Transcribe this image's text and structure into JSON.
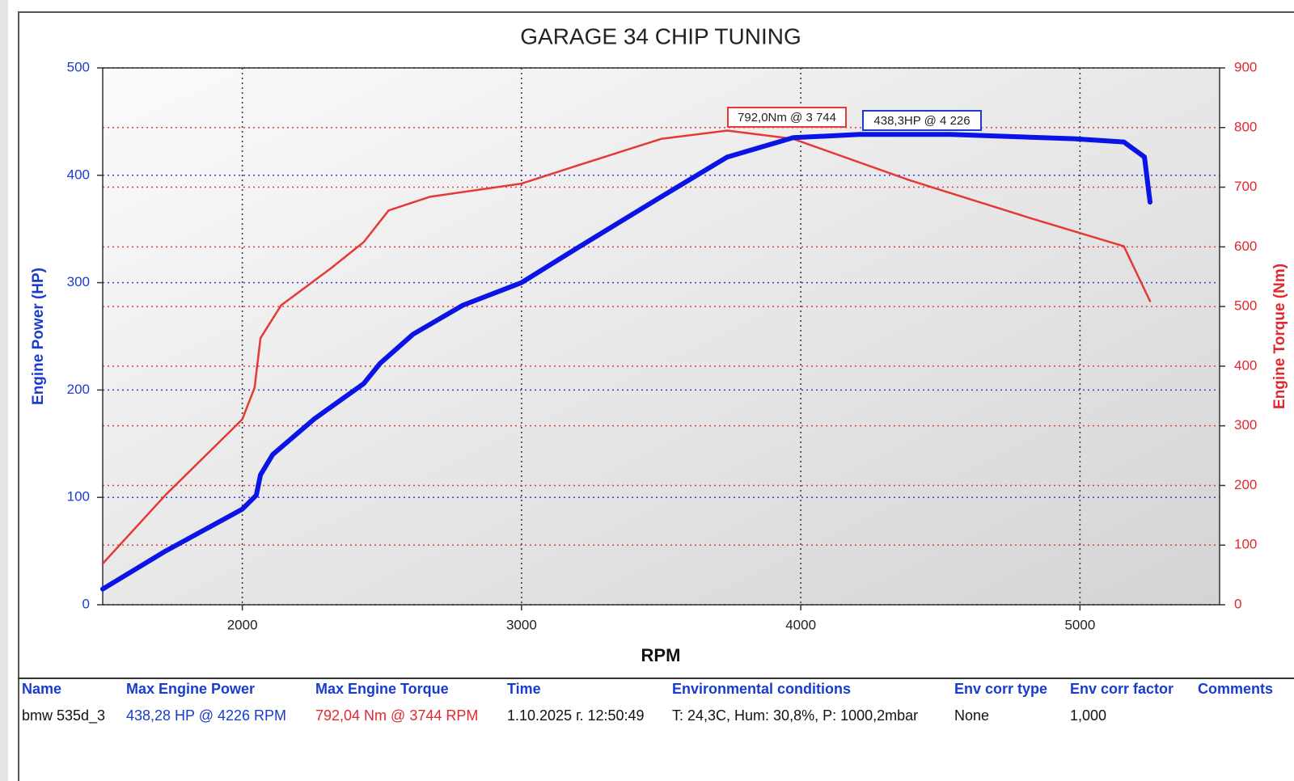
{
  "chart_data": {
    "type": "line",
    "title": "GARAGE 34 CHIP TUNING",
    "xlabel": "RPM",
    "ylabel": "Engine Power (HP)",
    "y2label": "Engine Torque (Nm)",
    "xlim": [
      1500,
      5500
    ],
    "xticks": [
      2000,
      3000,
      4000,
      5000
    ],
    "ylim": [
      0,
      500
    ],
    "yticks": [
      0,
      100,
      200,
      300,
      400,
      500
    ],
    "y2lim": [
      0,
      900
    ],
    "y2ticks": [
      0,
      100,
      200,
      300,
      400,
      500,
      600,
      700,
      800,
      900
    ],
    "grid": true,
    "series": [
      {
        "color": "#0a14e6",
        "axis": "y",
        "x": [
          1500,
          1725,
          2000,
          2050,
          2065,
          2109,
          2257,
          2435,
          2494,
          2612,
          2790,
          3000,
          3204,
          3500,
          3737,
          3973,
          4210,
          4536,
          4979,
          5157,
          5231,
          5251
        ],
        "values": [
          14.6,
          50,
          89,
          102,
          121,
          140,
          173,
          206,
          225,
          252,
          279,
          300,
          333,
          380,
          417,
          435,
          438,
          438,
          434,
          431,
          417,
          375
        ]
      },
      {
        "color": "#e53935",
        "axis": "y2",
        "x": [
          1500,
          1725,
          2000,
          2044,
          2065,
          2139,
          2317,
          2435,
          2524,
          2672,
          3000,
          3204,
          3500,
          3737,
          3973,
          4388,
          4831,
          5157,
          5251
        ],
        "values": [
          69,
          184,
          311,
          364,
          447,
          502,
          564,
          608,
          661,
          684,
          706,
          737,
          781,
          795,
          781,
          712,
          647,
          601,
          509
        ]
      }
    ],
    "annotations": [
      {
        "text": "792,0Nm @ 3 744",
        "color": "#e53935"
      },
      {
        "text": "438,3HP @ 4 226",
        "color": "#1a3ccc"
      }
    ]
  },
  "table": {
    "headers": [
      "Name",
      "Max Engine Power",
      "Max Engine Torque",
      "Time",
      "Environmental conditions",
      "Env corr type",
      "Env corr factor",
      "Comments"
    ],
    "rows": [
      [
        "bmw 535d_3",
        "438,28 HP @ 4226 RPM",
        "792,04 Nm @ 3744 RPM",
        "1.10.2025 г. 12:50:49",
        "T: 24,3C, Hum: 30,8%, P: 1000,2mbar",
        "None",
        "1,000"
      ]
    ]
  }
}
